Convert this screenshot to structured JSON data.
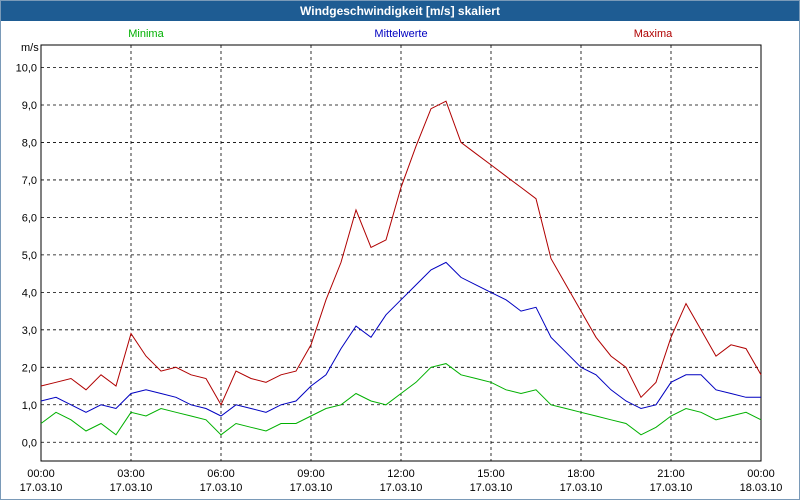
{
  "window": {
    "title": "Windgeschwindigkeit [m/s] skaliert"
  },
  "chart_data": {
    "type": "line",
    "title": "Windgeschwindigkeit [m/s] skaliert",
    "ylabel": "m/s",
    "ylim": [
      -0.5,
      10.6
    ],
    "y_ticks": [
      "0,0",
      "1,0",
      "2,0",
      "3,0",
      "4,0",
      "5,0",
      "6,0",
      "7,0",
      "8,0",
      "9,0",
      "10,0"
    ],
    "x_ticks": [
      {
        "time": "00:00",
        "date": "17.03.10"
      },
      {
        "time": "03:00",
        "date": "17.03.10"
      },
      {
        "time": "06:00",
        "date": "17.03.10"
      },
      {
        "time": "09:00",
        "date": "17.03.10"
      },
      {
        "time": "12:00",
        "date": "17.03.10"
      },
      {
        "time": "15:00",
        "date": "17.03.10"
      },
      {
        "time": "18:00",
        "date": "17.03.10"
      },
      {
        "time": "21:00",
        "date": "17.03.10"
      },
      {
        "time": "00:00",
        "date": "18.03.10"
      }
    ],
    "x_range_hours": [
      0,
      24
    ],
    "grid": true,
    "legend_position": "top",
    "series": [
      {
        "name": "Minima",
        "color": "#00b000",
        "x": [
          0,
          0.5,
          1,
          1.5,
          2,
          2.5,
          3,
          3.5,
          4,
          4.5,
          5,
          5.5,
          6,
          6.5,
          7,
          7.5,
          8,
          8.5,
          9,
          9.5,
          10,
          10.5,
          11,
          11.5,
          12,
          12.5,
          13,
          13.5,
          14,
          14.5,
          15,
          15.5,
          16,
          16.5,
          17,
          17.5,
          18,
          18.5,
          19,
          19.5,
          20,
          20.5,
          21,
          21.5,
          22,
          22.5,
          23,
          23.5,
          24
        ],
        "values": [
          0.5,
          0.8,
          0.6,
          0.3,
          0.5,
          0.2,
          0.8,
          0.7,
          0.9,
          0.8,
          0.7,
          0.6,
          0.2,
          0.5,
          0.4,
          0.3,
          0.5,
          0.5,
          0.7,
          0.9,
          1.0,
          1.3,
          1.1,
          1.0,
          1.3,
          1.6,
          2.0,
          2.1,
          1.8,
          1.7,
          1.6,
          1.4,
          1.3,
          1.4,
          1.0,
          0.9,
          0.8,
          0.7,
          0.6,
          0.5,
          0.2,
          0.4,
          0.7,
          0.9,
          0.8,
          0.6,
          0.7,
          0.8,
          0.6
        ]
      },
      {
        "name": "Mittelwerte",
        "color": "#0000c0",
        "x": [
          0,
          0.5,
          1,
          1.5,
          2,
          2.5,
          3,
          3.5,
          4,
          4.5,
          5,
          5.5,
          6,
          6.5,
          7,
          7.5,
          8,
          8.5,
          9,
          9.5,
          10,
          10.5,
          11,
          11.5,
          12,
          12.5,
          13,
          13.5,
          14,
          14.5,
          15,
          15.5,
          16,
          16.5,
          17,
          17.5,
          18,
          18.5,
          19,
          19.5,
          20,
          20.5,
          21,
          21.5,
          22,
          22.5,
          23,
          23.5,
          24
        ],
        "values": [
          1.1,
          1.2,
          1.0,
          0.8,
          1.0,
          0.9,
          1.3,
          1.4,
          1.3,
          1.2,
          1.0,
          0.9,
          0.7,
          1.0,
          0.9,
          0.8,
          1.0,
          1.1,
          1.5,
          1.8,
          2.5,
          3.1,
          2.8,
          3.4,
          3.8,
          4.2,
          4.6,
          4.8,
          4.4,
          4.2,
          4.0,
          3.8,
          3.5,
          3.6,
          2.8,
          2.4,
          2.0,
          1.8,
          1.4,
          1.1,
          0.9,
          1.0,
          1.6,
          1.8,
          1.8,
          1.4,
          1.3,
          1.2,
          1.2
        ]
      },
      {
        "name": "Maxima",
        "color": "#b00000",
        "x": [
          0,
          0.5,
          1,
          1.5,
          2,
          2.5,
          3,
          3.5,
          4,
          4.5,
          5,
          5.5,
          6,
          6.5,
          7,
          7.5,
          8,
          8.5,
          9,
          9.5,
          10,
          10.5,
          11,
          11.5,
          12,
          12.5,
          13,
          13.5,
          14,
          14.5,
          15,
          15.5,
          16,
          16.5,
          17,
          17.5,
          18,
          18.5,
          19,
          19.5,
          20,
          20.5,
          21,
          21.5,
          22,
          22.5,
          23,
          23.5,
          24
        ],
        "values": [
          1.5,
          1.6,
          1.7,
          1.4,
          1.8,
          1.5,
          2.9,
          2.3,
          1.9,
          2.0,
          1.8,
          1.7,
          1.0,
          1.9,
          1.7,
          1.6,
          1.8,
          1.9,
          2.6,
          3.8,
          4.8,
          6.2,
          5.2,
          5.4,
          6.8,
          7.9,
          8.9,
          9.1,
          8.0,
          7.7,
          7.4,
          7.1,
          6.8,
          6.5,
          4.9,
          4.2,
          3.5,
          2.8,
          2.3,
          2.0,
          1.2,
          1.6,
          2.8,
          3.7,
          3.0,
          2.3,
          2.6,
          2.5,
          1.8
        ]
      }
    ]
  }
}
